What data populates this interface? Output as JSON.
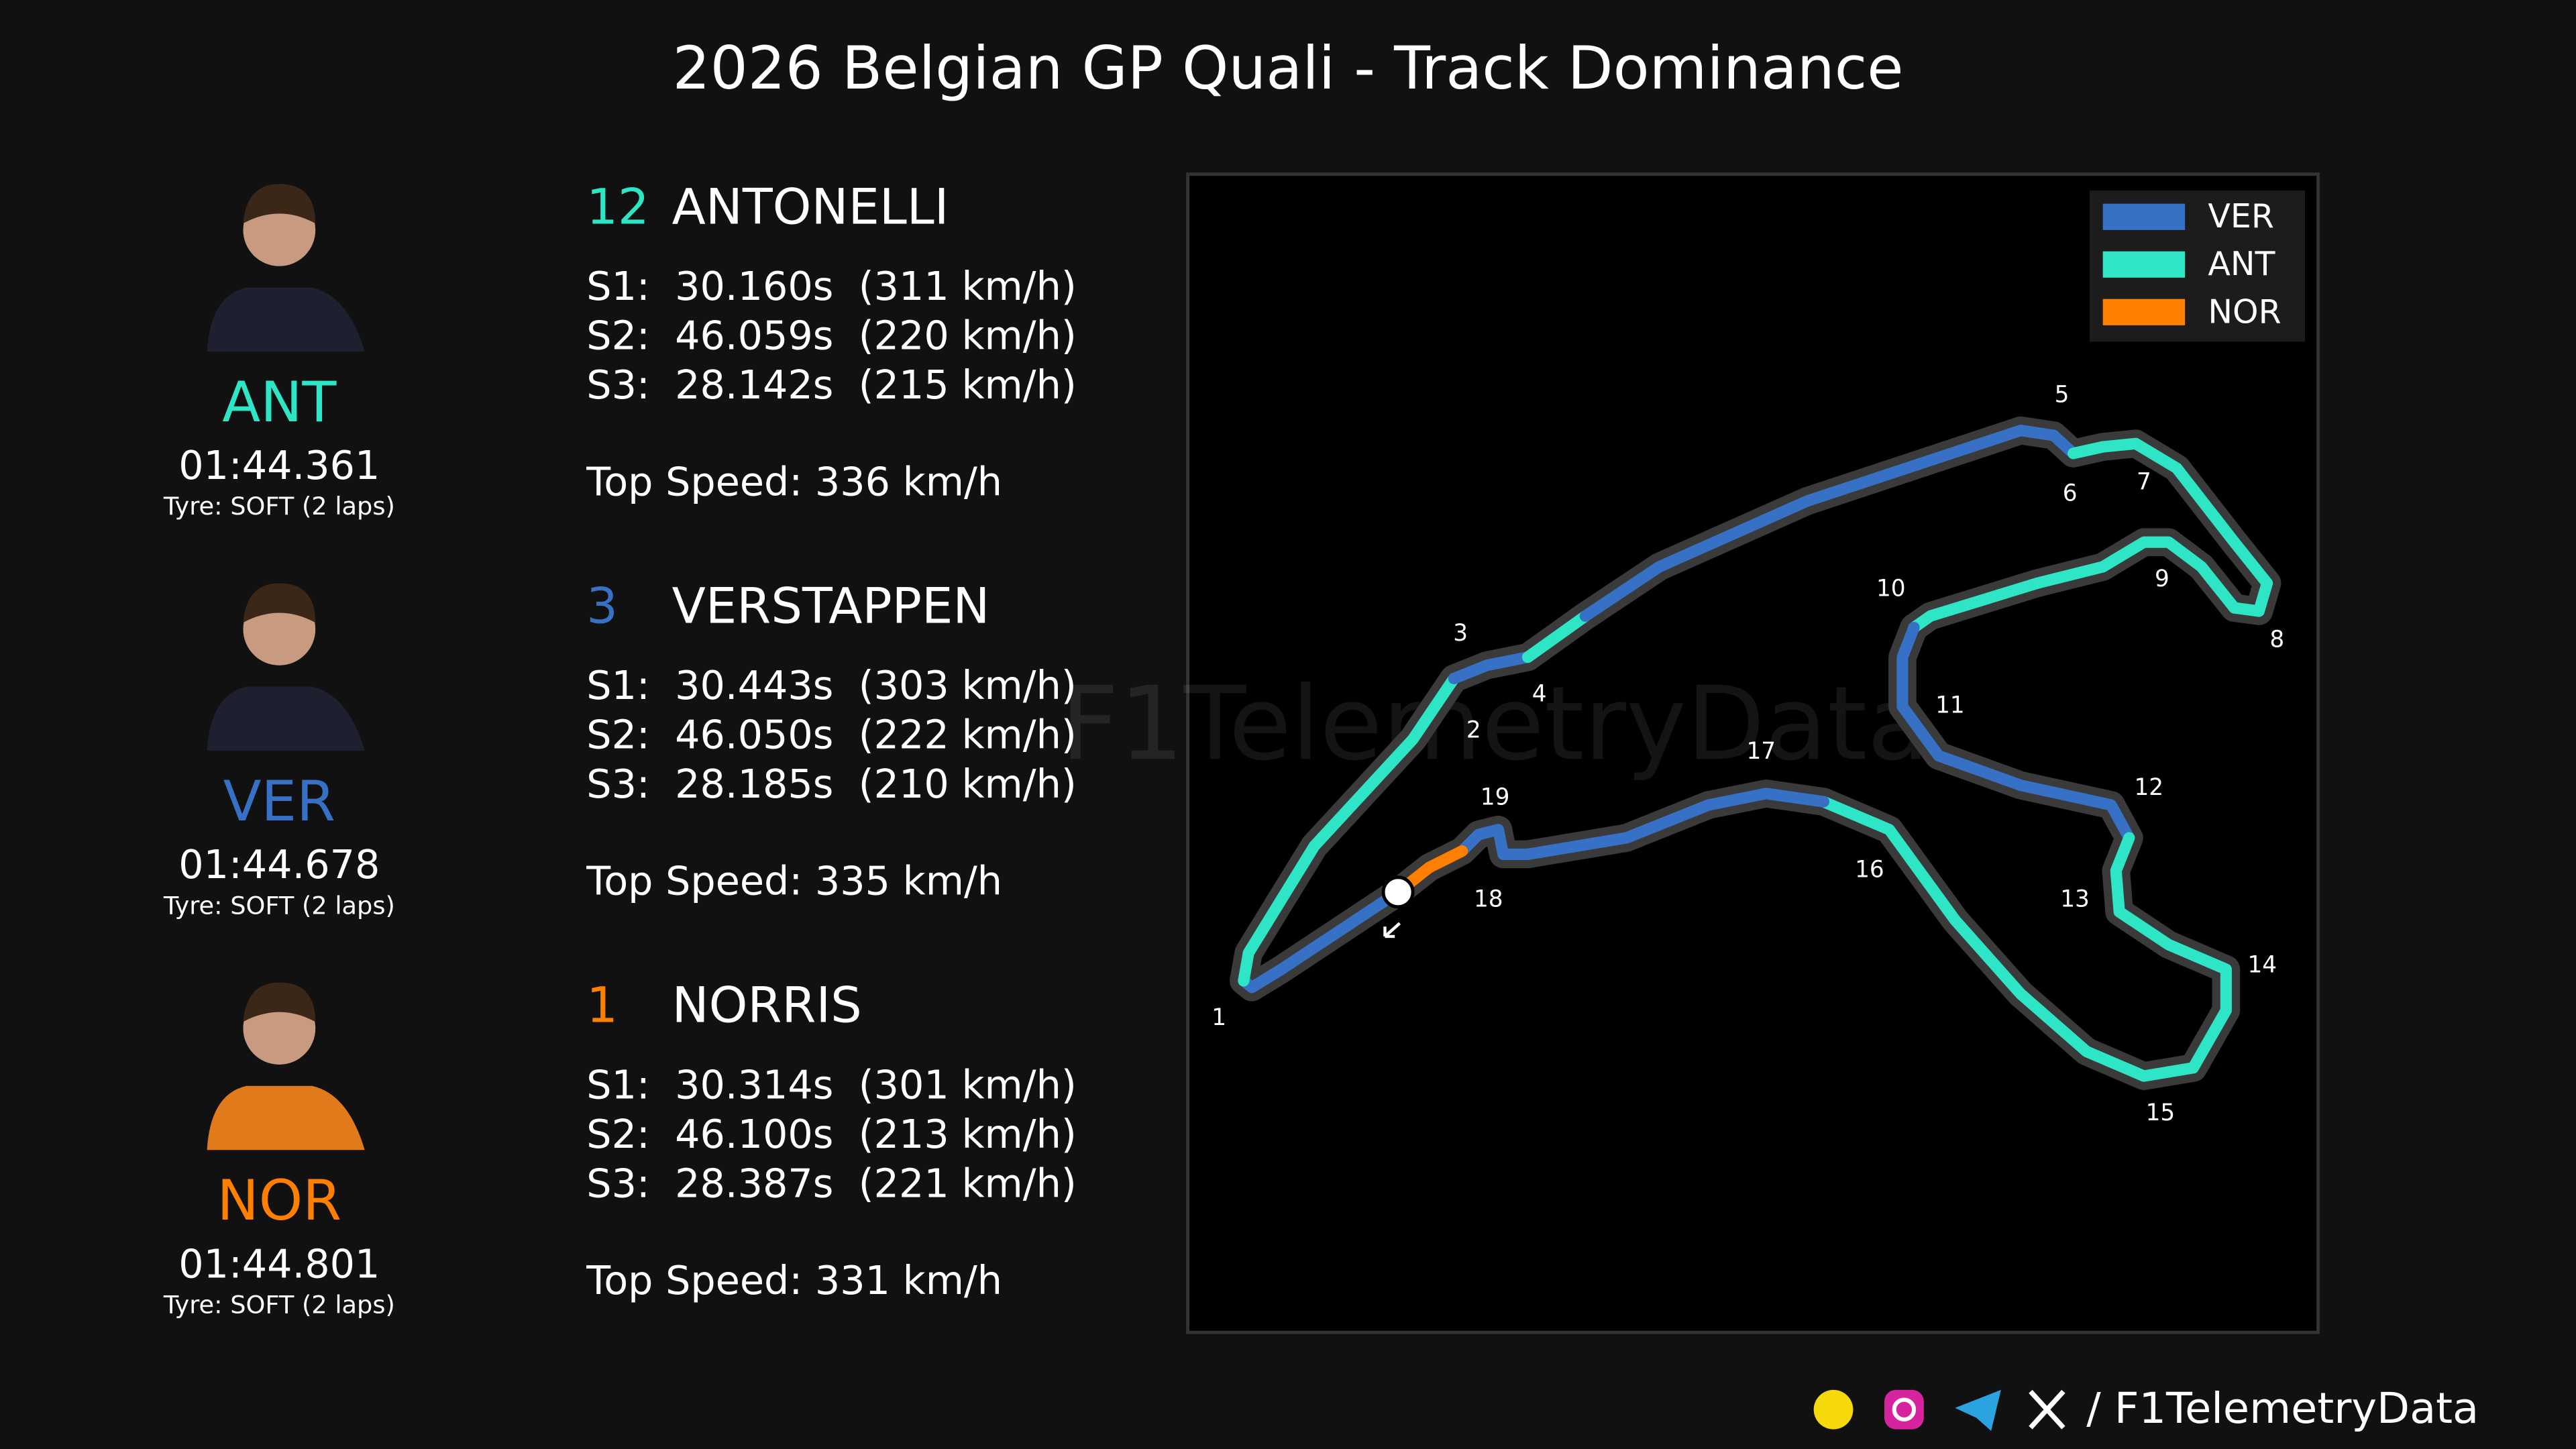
{
  "title": "2026 Belgian GP Quali - Track Dominance",
  "drivers": [
    {
      "code": "ANT",
      "color": "#2ee6c6",
      "lap_time": "01:44.361",
      "tyre": "Tyre: SOFT (2 laps)",
      "position": "12",
      "name": "ANTONELLI",
      "sectors": [
        "S1:  30.160s  (311 km/h)",
        "S2:  46.059s  (220 km/h)",
        "S3:  28.142s  (215 km/h)"
      ],
      "top_speed": "Top Speed: 336 km/h"
    },
    {
      "code": "VER",
      "color": "#3671c6",
      "lap_time": "01:44.678",
      "tyre": "Tyre: SOFT (2 laps)",
      "position": "3",
      "name": "VERSTAPPEN",
      "sectors": [
        "S1:  30.443s  (303 km/h)",
        "S2:  46.050s  (222 km/h)",
        "S3:  28.185s  (210 km/h)"
      ],
      "top_speed": "Top Speed: 335 km/h"
    },
    {
      "code": "NOR",
      "color": "#ff8000",
      "lap_time": "01:44.801",
      "tyre": "Tyre: SOFT (2 laps)",
      "position": "1",
      "name": "NORRIS",
      "sectors": [
        "S1:  30.314s  (301 km/h)",
        "S2:  46.100s  (213 km/h)",
        "S3:  28.387s  (221 km/h)"
      ],
      "top_speed": "Top Speed: 331 km/h"
    }
  ],
  "legend": [
    {
      "name": "VER",
      "color": "#3671c6"
    },
    {
      "name": "ANT",
      "color": "#2ee6c6"
    },
    {
      "name": "NOR",
      "color": "#ff8000"
    }
  ],
  "track": {
    "segments": [
      "VER",
      "ANT",
      "VER",
      "ANT",
      "VER",
      "ANT",
      "VER",
      "ANT",
      "VER",
      "NOR"
    ],
    "corners": [
      "1",
      "2",
      "3",
      "4",
      "5",
      "6",
      "7",
      "8",
      "9",
      "10",
      "11",
      "12",
      "13",
      "14",
      "15",
      "16",
      "17",
      "18",
      "19"
    ]
  },
  "watermark": "F1TelemetryData",
  "footer": "/ F1TelemetryData"
}
